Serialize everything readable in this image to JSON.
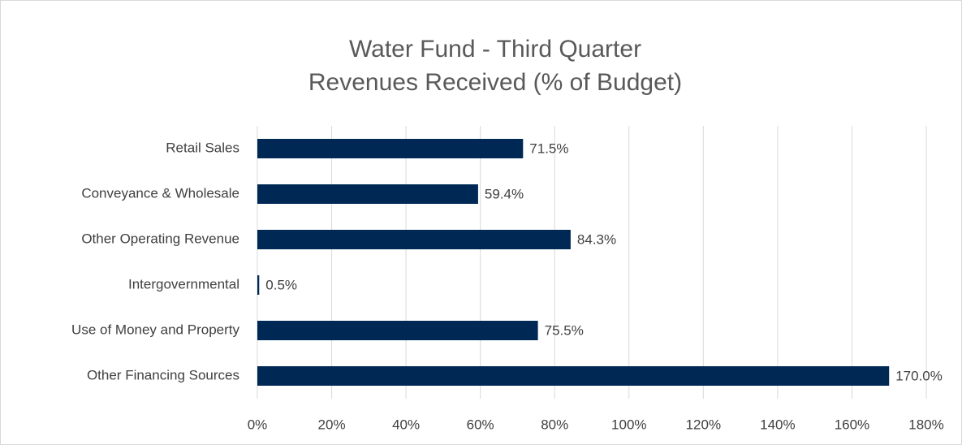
{
  "chart_data": {
    "type": "barh",
    "title": "Water Fund - Third Quarter",
    "subtitle": "Revenues Received (% of Budget)",
    "categories": [
      "Retail Sales",
      "Conveyance & Wholesale",
      "Other Operating Revenue",
      "Intergovernmental",
      "Use of Money and Property",
      "Other Financing Sources"
    ],
    "values": [
      71.5,
      59.4,
      84.3,
      0.5,
      75.5,
      170.0
    ],
    "value_labels": [
      "71.5%",
      "59.4%",
      "84.3%",
      "0.5%",
      "75.5%",
      "170.0%"
    ],
    "color": "#002855",
    "xlim": [
      0,
      180
    ],
    "xticks": [
      {
        "value": 0,
        "label": "0%"
      },
      {
        "value": 20,
        "label": "20%"
      },
      {
        "value": 40,
        "label": "40%"
      },
      {
        "value": 60,
        "label": "60%"
      },
      {
        "value": 80,
        "label": "80%"
      },
      {
        "value": 100,
        "label": "100%"
      },
      {
        "value": 120,
        "label": "120%"
      },
      {
        "value": 140,
        "label": "140%"
      },
      {
        "value": 160,
        "label": "160%"
      },
      {
        "value": 180,
        "label": "180%"
      }
    ],
    "grid": true
  }
}
